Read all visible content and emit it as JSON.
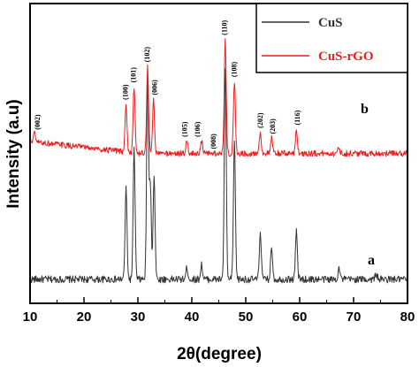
{
  "chart_data": {
    "type": "line",
    "xlabel": "2θ(degree)",
    "ylabel": "Intensity (a.u)",
    "xlim": [
      10,
      80
    ],
    "x_ticks": [
      "10",
      "20",
      "30",
      "40",
      "50",
      "60",
      "70",
      "80"
    ],
    "y_ticks_labeled": false,
    "grid": false,
    "legend_position": "top-right",
    "series": [
      {
        "name": "CuS",
        "color": "#333333",
        "curve_label": "a",
        "baseline": 0.08,
        "noise": 0.012,
        "peaks": [
          {
            "x": 27.8,
            "h": 0.3
          },
          {
            "x": 29.3,
            "h": 0.43
          },
          {
            "x": 31.8,
            "h": 0.67
          },
          {
            "x": 32.3,
            "h": 0.32
          },
          {
            "x": 33.0,
            "h": 0.35
          },
          {
            "x": 39.1,
            "h": 0.04
          },
          {
            "x": 41.8,
            "h": 0.05
          },
          {
            "x": 46.2,
            "h": 0.71
          },
          {
            "x": 47.9,
            "h": 0.46
          },
          {
            "x": 52.7,
            "h": 0.16
          },
          {
            "x": 54.8,
            "h": 0.11
          },
          {
            "x": 59.4,
            "h": 0.16
          },
          {
            "x": 67.3,
            "h": 0.04
          },
          {
            "x": 74.2,
            "h": 0.02
          }
        ]
      },
      {
        "name": "CuS-rGO",
        "color": "#ee1c1c",
        "curve_label": "b",
        "baseline": 0.5,
        "noise": 0.01,
        "peaks": [
          {
            "x": 10.8,
            "h": 0.03
          },
          {
            "x": 27.8,
            "h": 0.16
          },
          {
            "x": 29.3,
            "h": 0.22
          },
          {
            "x": 31.8,
            "h": 0.29
          },
          {
            "x": 32.9,
            "h": 0.18
          },
          {
            "x": 39.1,
            "h": 0.04
          },
          {
            "x": 41.8,
            "h": 0.04
          },
          {
            "x": 46.2,
            "h": 0.38
          },
          {
            "x": 47.9,
            "h": 0.24
          },
          {
            "x": 52.7,
            "h": 0.07
          },
          {
            "x": 54.8,
            "h": 0.05
          },
          {
            "x": 59.4,
            "h": 0.08
          },
          {
            "x": 67.3,
            "h": 0.02
          }
        ]
      }
    ],
    "annotations": [
      {
        "text": "(002)",
        "x": 11.5
      },
      {
        "text": "(100)",
        "x": 27.8
      },
      {
        "text": "(101)",
        "x": 29.3
      },
      {
        "text": "(102)",
        "x": 31.8
      },
      {
        "text": "(006)",
        "x": 33.2
      },
      {
        "text": "(105)",
        "x": 38.8
      },
      {
        "text": "(106)",
        "x": 41.2
      },
      {
        "text": "(008)",
        "x": 44.1
      },
      {
        "text": "(110)",
        "x": 46.2
      },
      {
        "text": "(108)",
        "x": 48.0
      },
      {
        "text": "(202)",
        "x": 52.8
      },
      {
        "text": "(203)",
        "x": 55.1
      },
      {
        "text": "(116)",
        "x": 59.7
      }
    ]
  }
}
